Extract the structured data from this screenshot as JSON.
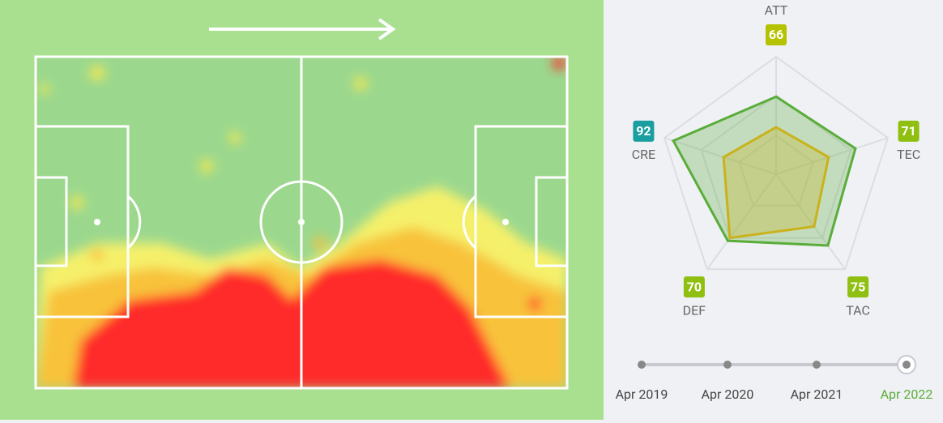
{
  "radar": {
    "type": "radar",
    "axes": [
      "ATT",
      "TEC",
      "TAC",
      "DEF",
      "CRE"
    ],
    "rlim": [
      0,
      100
    ],
    "rticks": [
      33,
      67,
      100
    ],
    "series": [
      {
        "color": "#5aad3a",
        "values": [
          66,
          71,
          75,
          70,
          92
        ]
      },
      {
        "color": "#c9b21a",
        "values": [
          40,
          47,
          55,
          67,
          47
        ]
      }
    ],
    "badge_colors": [
      "#b5c200",
      "#8fbf10",
      "#8fbf10",
      "#8fbf10",
      "#1a9ea0"
    ]
  },
  "timeline": {
    "labels": [
      "Apr 2019",
      "Apr 2020",
      "Apr 2021",
      "Apr 2022"
    ],
    "selected": 3,
    "selected_color": "#5aad3a"
  }
}
